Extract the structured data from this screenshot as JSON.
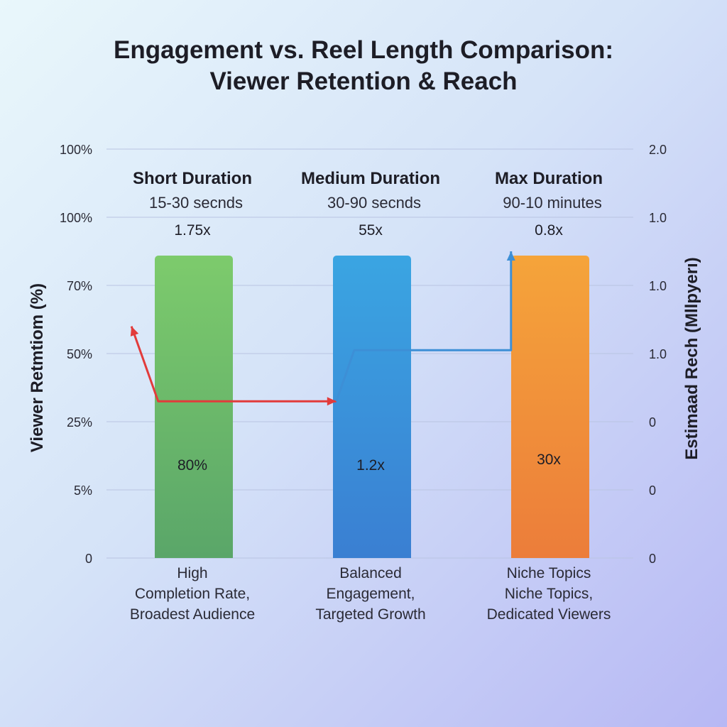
{
  "chart_data": {
    "type": "bar",
    "title": [
      "Engagement vs. Reel Length Comparison:",
      "Viewer Retention & Reach"
    ],
    "ylabel": "Viewer Retmtiom (%)",
    "y2label": "Estimaad Rech (Mllpyerı)",
    "y_ticks": [
      "100%",
      "100%",
      "70%",
      "50%",
      "25%",
      "5%",
      "0"
    ],
    "y2_ticks": [
      "2.0",
      "1.0",
      "1.0",
      "1.0",
      "0",
      "0",
      "0"
    ],
    "grid": true,
    "categories": [
      {
        "title": "Short Duration",
        "range": "15-30 secnds",
        "multiplier": "1.75x",
        "bar_label": "80%",
        "value": 80,
        "desc": [
          "High",
          "Completion Rate,",
          "Broadest Audience"
        ],
        "color_top": "#7dcb6c",
        "color_bottom": "#5aa669"
      },
      {
        "title": "Medium Duration",
        "range": "30-90 secnds",
        "multiplier": "55x",
        "bar_label": "1.2x",
        "value": 80,
        "desc": [
          "Balanced",
          "Engagement,",
          "Targeted Growth"
        ],
        "color_top": "#3aa5e2",
        "color_bottom": "#3a7fd2"
      },
      {
        "title": "Max Duration",
        "range": "90-10 minutes",
        "multiplier": "0.8x",
        "bar_label": "30x",
        "value": 80,
        "desc": [
          "Niche Topics",
          "Niche Topics,",
          "Dedicated Viewers"
        ],
        "color_top": "#f5a43a",
        "color_bottom": "#ec7d3a"
      }
    ],
    "series": [
      {
        "type": "line",
        "color": "#e23b3b",
        "points": [
          [
            -0.35,
            3.4
          ],
          [
            -0.2,
            2.3
          ],
          [
            0.8,
            2.3
          ]
        ]
      },
      {
        "type": "line",
        "color": "#3d8fd6",
        "points": [
          [
            0.8,
            2.3
          ],
          [
            0.9,
            3.05
          ],
          [
            1.78,
            3.05
          ],
          [
            1.78,
            4.5
          ]
        ]
      }
    ]
  }
}
